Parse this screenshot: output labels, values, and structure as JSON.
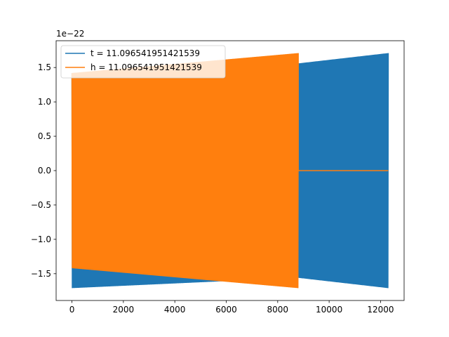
{
  "chart_data": {
    "type": "line",
    "title": "",
    "xlabel": "",
    "ylabel": "",
    "offset_label": "1e−22",
    "xlim": [
      -615,
      12915
    ],
    "ylim": [
      -1.89,
      1.89
    ],
    "x_ticks": [
      0,
      2000,
      4000,
      6000,
      8000,
      10000,
      12000
    ],
    "x_tick_labels": [
      "0",
      "2000",
      "4000",
      "6000",
      "8000",
      "10000",
      "12000"
    ],
    "y_ticks": [
      -1.5,
      -1.0,
      -0.5,
      0.0,
      0.5,
      1.0,
      1.5
    ],
    "y_tick_labels": [
      "−1.5",
      "−1.0",
      "−0.5",
      "0.0",
      "0.5",
      "1.0",
      "1.5"
    ],
    "grid": false,
    "legend_position": "top-left",
    "series": [
      {
        "name": "t = 11.096541951421539",
        "color": "#1f77b4",
        "x_start": 0,
        "x_end": 12300,
        "envelope": {
          "x": [
            0,
            8800,
            12300
          ],
          "upper": [
            1.42,
            1.56,
            1.71
          ],
          "lower": [
            -1.71,
            -1.56,
            -1.71
          ]
        }
      },
      {
        "name": "h = 11.096541951421539",
        "color": "#ff7f0e",
        "x_start": 0,
        "x_end": 12300,
        "oscillation_end": 8800,
        "envelope": {
          "x": [
            0,
            8800
          ],
          "upper": [
            1.42,
            1.71
          ],
          "lower": [
            -1.42,
            -1.71
          ]
        },
        "tail_value": 0.0
      }
    ]
  }
}
